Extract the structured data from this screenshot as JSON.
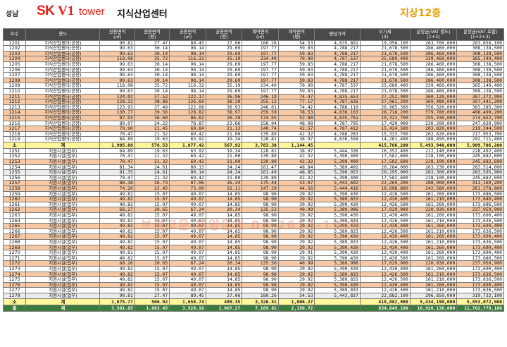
{
  "header": {
    "region": "성남",
    "brand_sk": "SK",
    "brand_v1": "V1",
    "brand_tower": "tower",
    "brand_sub": "지식산업센터",
    "floor": "지상12층"
  },
  "columns": [
    "호수",
    "용도",
    "전용면적\n(㎡)",
    "전용면적\n(평)",
    "공용면적\n(㎡)",
    "공용면적\n(평)",
    "계약면적\n(㎡)",
    "계약면적\n(평)",
    "평당가격",
    "부가세\n(3)",
    "분양금(VAT 별도)\n(1+2)",
    "분양금(VAT 포함)\n(1+2+3)"
  ],
  "group1": [
    [
      "1201",
      "지식산업센터(공장)",
      "90.81",
      "27.47",
      "89.45",
      "27.06",
      "180.26",
      "54.53",
      "4,835,891",
      "19,956,100",
      "263,700,000",
      "283,656,100",
      "w"
    ],
    [
      "1202",
      "지식산업센터(공장)",
      "99.63",
      "30.14",
      "98.14",
      "29.69",
      "197.77",
      "59.83",
      "4,788,217",
      "21,678,500",
      "286,460,000",
      "308,138,500",
      "w"
    ],
    [
      "1203",
      "지식산업센터(공장)",
      "99.63",
      "30.14",
      "98.14",
      "29.69",
      "197.77",
      "59.83",
      "4,788,217",
      "21,678,500",
      "286,460,000",
      "308,138,500",
      "o"
    ],
    [
      "1204",
      "지식산업센터(공장)",
      "118.08",
      "35.72",
      "116.32",
      "35.19",
      "234.40",
      "70.90",
      "4,787,537",
      "25,689,400",
      "339,460,000",
      "365,149,400",
      "o"
    ],
    [
      "1205",
      "지식산업센터(공장)",
      "99.63",
      "30.14",
      "98.14",
      "29.69",
      "197.77",
      "59.83",
      "4,788,217",
      "21,678,500",
      "286,460,000",
      "308,138,500",
      "w"
    ],
    [
      "1206",
      "지식산업센터(공장)",
      "99.63",
      "30.14",
      "98.14",
      "29.69",
      "197.77",
      "59.83",
      "4,788,217",
      "21,678,500",
      "286,460,000",
      "308,138,500",
      "w"
    ],
    [
      "1207",
      "지식산업센터(공장)",
      "99.63",
      "30.14",
      "98.14",
      "29.69",
      "197.77",
      "59.83",
      "4,788,217",
      "21,678,500",
      "286,460,000",
      "308,138,500",
      "w"
    ],
    [
      "1208",
      "지식산업센터(공장)",
      "99.63",
      "30.14",
      "98.14",
      "29.69",
      "197.77",
      "59.83",
      "4,788,217",
      "21,678,500",
      "286,460,000",
      "308,138,500",
      "o"
    ],
    [
      "1209",
      "지식산업센터(공장)",
      "118.08",
      "35.72",
      "116.32",
      "35.19",
      "234.40",
      "70.90",
      "4,787,537",
      "25,689,400",
      "339,460,000",
      "365,149,400",
      "w"
    ],
    [
      "1210",
      "지식산업센터(공장)",
      "99.63",
      "30.14",
      "98.14",
      "29.69",
      "197.77",
      "59.83",
      "4,788,217",
      "21,678,500",
      "286,460,000",
      "308,138,500",
      "w"
    ],
    [
      "1211",
      "지식산업센터(공장)",
      "124.02",
      "37.52",
      "122.17",
      "36.96",
      "246.19",
      "74.47",
      "4,835,653",
      "27,252,900",
      "360,120,000",
      "387,372,900",
      "o"
    ],
    [
      "1212",
      "지식산업센터(공장)",
      "128.32",
      "38.88",
      "126.60",
      "38.30",
      "255.12",
      "77.17",
      "4,787,626",
      "27,961,200",
      "369,480,000",
      "397,441,200",
      "o"
    ],
    [
      "1213",
      "지식산업센터(공장)",
      "123.93",
      "37.49",
      "122.08",
      "36.93",
      "246.01",
      "74.42",
      "4,788,110",
      "26,965,300",
      "356,320,000",
      "383,285,300",
      "w"
    ],
    [
      "1214",
      "지식산업센터(공장)",
      "130.77",
      "39.56",
      "128.82",
      "38.97",
      "259.59",
      "78.53",
      "4,836,163",
      "28,718,200",
      "379,780,000",
      "408,499,200",
      "o"
    ],
    [
      "1215",
      "지식산업센터(공장)",
      "87.93",
      "26.60",
      "86.62",
      "26.20",
      "174.55",
      "52.80",
      "4,835,761",
      "19,322,700",
      "255,330,000",
      "274,652,700",
      "o"
    ],
    [
      "1216",
      "지식산업센터(공장)",
      "80.07",
      "24.22",
      "78.87",
      "23.86",
      "158.94",
      "48.08",
      "4,787,795",
      "17,420,900",
      "230,200,000",
      "247,620,900",
      "w"
    ],
    [
      "1217",
      "지식산업센터(공장)",
      "70.90",
      "21.45",
      "69.84",
      "21.13",
      "140.74",
      "42.57",
      "4,787,412",
      "15,424,500",
      "203,820,000",
      "219,244,500",
      "o"
    ],
    [
      "1218",
      "지식산업센터(공장)",
      "70.47",
      "21.32",
      "69.42",
      "21.00",
      "139.89",
      "42.32",
      "4,788,263",
      "15,333,700",
      "202,620,000",
      "217,953,700",
      "w"
    ],
    [
      "1219",
      "지식산업센터(공장)",
      "64.89",
      "19.63",
      "63.92",
      "19.34",
      "128.81",
      "38.97",
      "4,836,558",
      "14,261,400",
      "188,450,000",
      "202,711,400",
      "w"
    ]
  ],
  "subtotal1": [
    "소",
    "계",
    "1,905.88",
    "576.53",
    "1,877.42",
    "567.92",
    "3,783.30",
    "1,144.45",
    "",
    "415,766,200",
    "5,493,940,000",
    "5,909,706,200"
  ],
  "group2": [
    [
      "1251",
      "지원시설(업무)",
      "64.89",
      "19.63",
      "63.92",
      "19.34",
      "128.81",
      "38.97",
      "5,444,336",
      "16,352,400",
      "212,140,000",
      "228,492,400",
      "w"
    ],
    [
      "1252",
      "지원시설(업무)",
      "70.47",
      "21.32",
      "69.42",
      "21.00",
      "139.89",
      "42.32",
      "5,390,400",
      "17,582,600",
      "228,100,000",
      "245,682,600",
      "w"
    ],
    [
      "1253",
      "지원시설(업무)",
      "70.47",
      "21.32",
      "69.42",
      "21.00",
      "139.89",
      "42.32",
      "5,390,400",
      "17,582,600",
      "228,100,000",
      "245,682,600",
      "o"
    ],
    [
      "1254",
      "지원시설(업무)",
      "81.34",
      "24.61",
      "80.13",
      "24.24",
      "161.47",
      "48.84",
      "5,389,492",
      "20,284,000",
      "263,230,000",
      "283,514,000",
      "w"
    ],
    [
      "1255",
      "지원시설(업무)",
      "81.35",
      "24.61",
      "80.14",
      "24.24",
      "161.49",
      "48.85",
      "5,390,053",
      "20,295,900",
      "263,300,000",
      "283,595,900",
      "g"
    ],
    [
      "1256",
      "지원시설(업무)",
      "70.47",
      "21.32",
      "69.42",
      "21.00",
      "139.89",
      "42.32",
      "5,390,400",
      "17,582,600",
      "228,100,000",
      "245,682,600",
      "w"
    ],
    [
      "1257",
      "지원시설(업무)",
      "88.38",
      "26.73",
      "87.06",
      "26.34",
      "175.44",
      "53.07",
      "5,443,692",
      "22,269,200",
      "288,900,000",
      "311,169,200",
      "o"
    ],
    [
      "1258",
      "지원시설(업무)",
      "74.20",
      "22.45",
      "73.09",
      "22.11",
      "147.29",
      "44.56",
      "5,444,416",
      "18,698,800",
      "242,580,000",
      "261,278,800",
      "o"
    ],
    [
      "1259",
      "지원시설(업무)",
      "49.82",
      "15.07",
      "49.07",
      "14.85",
      "98.90",
      "29.92",
      "5,390,430",
      "12,426,500",
      "161,260,000",
      "173,686,500",
      "w"
    ],
    [
      "1260",
      "지원시설(업무)",
      "49.82",
      "15.07",
      "49.07",
      "14.85",
      "98.90",
      "29.92",
      "5,389,833",
      "12,430,400",
      "161,210,000",
      "173,640,400",
      "o"
    ],
    [
      "1261",
      "지원시설(업무)",
      "49.82",
      "15.07",
      "49.07",
      "14.85",
      "98.90",
      "29.92",
      "5,390,430",
      "12,426,500",
      "161,260,000",
      "173,686,500",
      "w"
    ],
    [
      "1262",
      "지원시설(업무)",
      "68.27",
      "20.65",
      "67.24",
      "20.34",
      "135.52",
      "40.99",
      "5,389,996",
      "17,029,900",
      "220,930,000",
      "237,959,900",
      "o"
    ],
    [
      "1263",
      "지원시설(업무)",
      "49.82",
      "15.07",
      "49.07",
      "14.85",
      "98.90",
      "29.92",
      "5,390,430",
      "12,430,400",
      "161,260,000",
      "173,690,400",
      "w"
    ],
    [
      "1264",
      "지원시설(업무)",
      "49.82",
      "15.07",
      "49.07",
      "14.85",
      "98.90",
      "29.92",
      "5,389,833",
      "12,426,500",
      "161,210,000",
      "173,636,500",
      "w"
    ],
    [
      "1265",
      "지원시설(업무)",
      "49.82",
      "15.07",
      "49.07",
      "14.85",
      "98.90",
      "29.92",
      "5,390,430",
      "12,430,400",
      "161,260,000",
      "173,690,400",
      "o"
    ],
    [
      "1266",
      "지원시설(업무)",
      "49.82",
      "15.07",
      "49.07",
      "14.85",
      "98.90",
      "29.92",
      "5,389,833",
      "12,426,500",
      "161,210,000",
      "173,636,500",
      "w"
    ],
    [
      "1267",
      "지원시설(업무)",
      "49.82",
      "15.07",
      "49.07",
      "14.85",
      "98.90",
      "29.92",
      "5,390,430",
      "12,430,400",
      "161,260,000",
      "173,690,400",
      "o"
    ],
    [
      "1268",
      "지원시설(업무)",
      "49.82",
      "15.07",
      "49.07",
      "14.85",
      "98.90",
      "29.92",
      "5,389,833",
      "12,426,500",
      "161,210,000",
      "173,636,500",
      "w"
    ],
    [
      "1269",
      "지원시설(업무)",
      "49.82",
      "15.07",
      "49.07",
      "14.85",
      "98.90",
      "29.92",
      "5,390,430",
      "12,430,400",
      "161,260,000",
      "173,690,400",
      "o"
    ],
    [
      "1270",
      "지원시설(업무)",
      "49.81",
      "15.07",
      "49.07",
      "14.85",
      "98.90",
      "29.91",
      "5,390,430",
      "12,430,400",
      "161,260,000",
      "173,690,400",
      "w"
    ],
    [
      "1271",
      "지원시설(업무)",
      "49.82",
      "15.07",
      "49.07",
      "14.85",
      "98.90",
      "29.92",
      "5,390,430",
      "12,426,500",
      "161,260,000",
      "173,686,500",
      "w"
    ],
    [
      "1272",
      "지원시설(업무)",
      "68.26",
      "20.65",
      "67.24",
      "20.34",
      "135.50",
      "40.99",
      "5,389,996",
      "17,029,900",
      "220,930,000",
      "237,959,900",
      "o"
    ],
    [
      "1273",
      "지원시설(업무)",
      "49.82",
      "15.07",
      "49.07",
      "14.85",
      "98.90",
      "29.92",
      "5,390,430",
      "12,430,400",
      "161,260,000",
      "173,690,400",
      "w"
    ],
    [
      "1274",
      "지원시설(업무)",
      "49.82",
      "15.07",
      "49.07",
      "14.85",
      "98.90",
      "29.92",
      "5,389,833",
      "12,426,500",
      "161,210,000",
      "173,636,500",
      "o"
    ],
    [
      "1275",
      "지원시설(업무)",
      "49.82",
      "15.07",
      "49.07",
      "14.85",
      "98.90",
      "29.92",
      "5,389,833",
      "12,426,500",
      "161,210,000",
      "173,636,500",
      "w"
    ],
    [
      "1276",
      "지원시설(업무)",
      "49.82",
      "15.07",
      "49.07",
      "14.85",
      "98.90",
      "29.92",
      "5,390,430",
      "12,430,400",
      "161,260,000",
      "173,690,400",
      "o"
    ],
    [
      "1277",
      "지원시설(업무)",
      "49.82",
      "15.07",
      "49.07",
      "14.85",
      "98.90",
      "29.92",
      "5,389,833",
      "12,426,500",
      "161,210,000",
      "173,636,500",
      "w"
    ],
    [
      "1278",
      "지원시설(업무)",
      "90.81",
      "27.47",
      "89.45",
      "27.06",
      "180.26",
      "54.53",
      "5,443,837",
      "22,882,100",
      "296,850,000",
      "319,732,100",
      "g"
    ]
  ],
  "subtotal2": [
    "소",
    "계",
    "1,675.77",
    "506.92",
    "1,650.74",
    "499.35",
    "3,326.51",
    "1,006.27",
    "",
    "418,882,900",
    "5,434,190,000",
    "5,853,072,900"
  ],
  "total": [
    "총",
    "계",
    "3,581.65",
    "1,083.45",
    "3,528.16",
    "1,067.27",
    "7,109.81",
    "2,150.72",
    "",
    "834,649,100",
    "10,928,130,000",
    "11,762,779,100"
  ],
  "watermark": "보관고문 분양문의 02-2613-1919"
}
